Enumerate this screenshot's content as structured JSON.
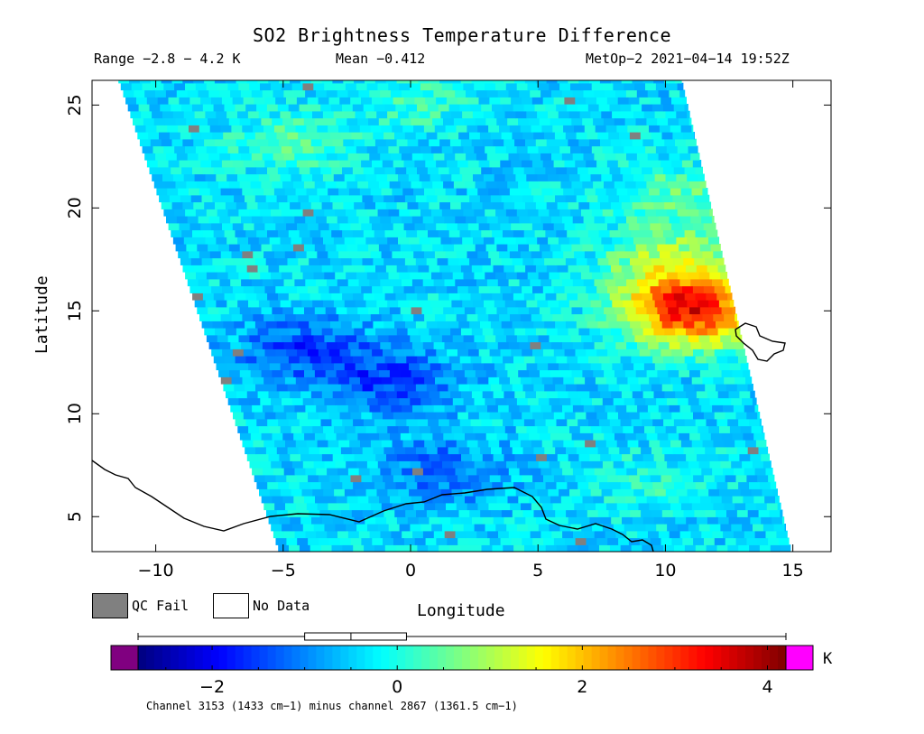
{
  "chart_data": {
    "type": "heatmap",
    "title": "SO2 Brightness Temperature Difference",
    "subtitle_range": "Range −2.8 − 4.2 K",
    "subtitle_mean": "Mean −0.412",
    "subtitle_satellite": "MetOp−2 2021−04−14 19:52Z",
    "xlabel": "Longitude",
    "ylabel": "Latitude",
    "xlim": [
      -12.5,
      16.5
    ],
    "ylim": [
      3.3,
      26.2
    ],
    "x_ticks": [
      -10,
      -5,
      0,
      5,
      10,
      15
    ],
    "x_tick_labels": [
      "−10",
      "−5",
      "0",
      "5",
      "10",
      "15"
    ],
    "y_ticks": [
      5,
      10,
      15,
      20,
      25
    ],
    "y_tick_labels": [
      "5",
      "10",
      "15",
      "20",
      "25"
    ],
    "swath_corners_lonlat": {
      "top_left": [
        -11.5,
        26.2
      ],
      "top_right": [
        10.6,
        26.2
      ],
      "bottom_right": [
        14.9,
        3.3
      ],
      "bottom_left": [
        -5.2,
        3.3
      ]
    },
    "value_range": [
      -2.8,
      4.2
    ],
    "mean": -0.412,
    "features": [
      {
        "lon": 11.0,
        "lat": 14.5,
        "value": 4.0
      },
      {
        "lon": 10.5,
        "lat": 15.6,
        "value": 3.0
      },
      {
        "lon": 10.0,
        "lat": 17.5,
        "value": 1.6
      },
      {
        "lon": 10.5,
        "lat": 20.5,
        "value": 1.2
      },
      {
        "lon": -1.0,
        "lat": 11.5,
        "value": -2.4
      },
      {
        "lon": -4.5,
        "lat": 13.0,
        "value": -2.3
      },
      {
        "lon": 1.0,
        "lat": 7.0,
        "value": -2.0
      },
      {
        "lon": -5.0,
        "lat": 23.0,
        "value": 0.8
      },
      {
        "lon": 0.0,
        "lat": 25.0,
        "value": 0.6
      },
      {
        "lon": 9.0,
        "lat": 6.5,
        "value": 0.4
      }
    ],
    "background_value": -0.4,
    "colorbar": {
      "min": -2.8,
      "max": 4.2,
      "ticks": [
        -2,
        0,
        2,
        4
      ],
      "tick_labels": [
        "−2",
        "0",
        "2",
        "4"
      ],
      "stops": [
        "#00007f",
        "#0000ff",
        "#0080ff",
        "#00ffff",
        "#80ff80",
        "#ffff00",
        "#ff8000",
        "#ff0000",
        "#7f0000"
      ],
      "below_color": "#800080",
      "above_color": "#ff00ff",
      "box_plot": {
        "whisker_low": -2.8,
        "q1": -1.0,
        "median": -0.5,
        "q3": 0.1,
        "whisker_high": 4.2
      }
    },
    "qc_fail_color": "#808080",
    "legend": [
      {
        "label": "QC Fail",
        "color": "#808080"
      },
      {
        "label": "No Data",
        "color": "#ffffff"
      }
    ],
    "unit": "K",
    "footnote": "Channel 3153 (1433 cm−1) minus channel 2867 (1361.5 cm−1)"
  }
}
